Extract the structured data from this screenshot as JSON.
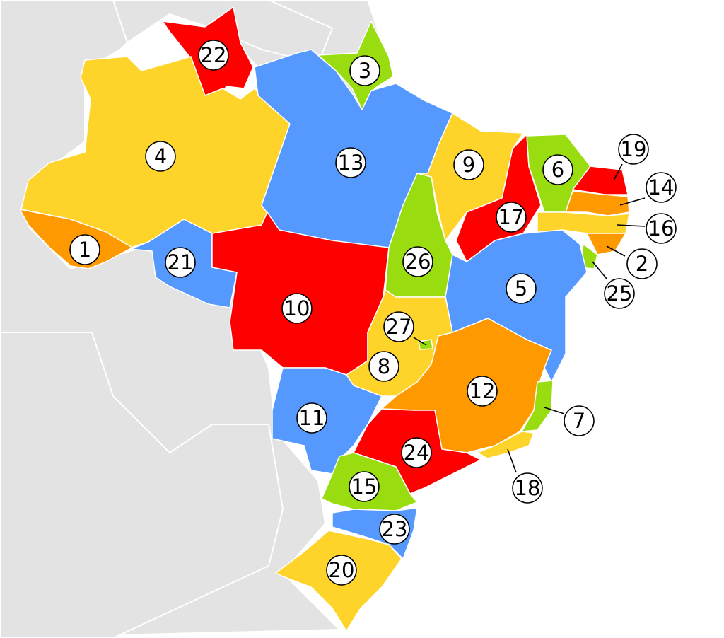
{
  "colors": {
    "red": "#ff0000",
    "orange": "#ff9900",
    "yellow": "#ffd42a",
    "green": "#99dd11",
    "blue": "#5599ff",
    "neighbor": "#e3e3e3"
  },
  "states": [
    {
      "id": "acre",
      "label": "1",
      "color": "orange"
    },
    {
      "id": "alagoas",
      "label": "2",
      "color": "orange"
    },
    {
      "id": "amapa",
      "label": "3",
      "color": "green"
    },
    {
      "id": "amazonas",
      "label": "4",
      "color": "yellow"
    },
    {
      "id": "bahia",
      "label": "5",
      "color": "blue"
    },
    {
      "id": "ceara",
      "label": "6",
      "color": "green"
    },
    {
      "id": "espirito-santo",
      "label": "7",
      "color": "green"
    },
    {
      "id": "goias",
      "label": "8",
      "color": "yellow"
    },
    {
      "id": "maranhao",
      "label": "9",
      "color": "yellow"
    },
    {
      "id": "mato-grosso",
      "label": "10",
      "color": "red"
    },
    {
      "id": "mato-grosso-do-sul",
      "label": "11",
      "color": "blue"
    },
    {
      "id": "minas-gerais",
      "label": "12",
      "color": "orange"
    },
    {
      "id": "para",
      "label": "13",
      "color": "blue"
    },
    {
      "id": "paraiba",
      "label": "14",
      "color": "orange"
    },
    {
      "id": "parana",
      "label": "15",
      "color": "green"
    },
    {
      "id": "pernambuco",
      "label": "16",
      "color": "yellow"
    },
    {
      "id": "piaui",
      "label": "17",
      "color": "red"
    },
    {
      "id": "rio-de-janeiro",
      "label": "18",
      "color": "yellow"
    },
    {
      "id": "rio-grande-do-norte",
      "label": "19",
      "color": "red"
    },
    {
      "id": "rio-grande-do-sul",
      "label": "20",
      "color": "yellow"
    },
    {
      "id": "rondonia",
      "label": "21",
      "color": "blue"
    },
    {
      "id": "roraima",
      "label": "22",
      "color": "red"
    },
    {
      "id": "santa-catarina",
      "label": "23",
      "color": "blue"
    },
    {
      "id": "sao-paulo",
      "label": "24",
      "color": "red"
    },
    {
      "id": "sergipe",
      "label": "25",
      "color": "green"
    },
    {
      "id": "tocantins",
      "label": "26",
      "color": "green"
    },
    {
      "id": "distrito-federal",
      "label": "27",
      "color": "green"
    }
  ]
}
